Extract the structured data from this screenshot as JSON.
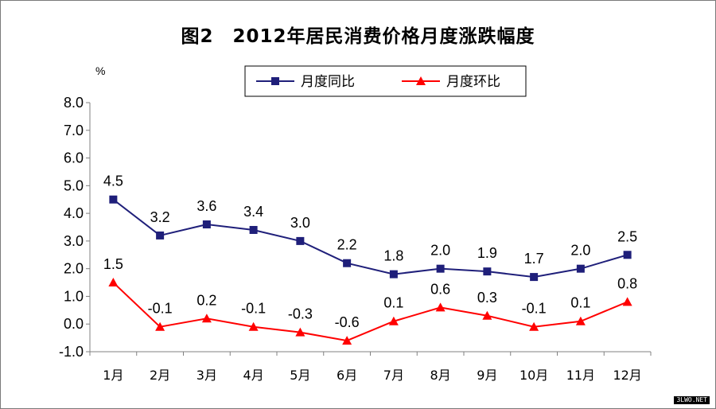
{
  "chart_data": {
    "type": "line",
    "title": "图2　2012年居民消费价格月度涨跌幅度",
    "unit_label": "%",
    "categories": [
      "1月",
      "2月",
      "3月",
      "4月",
      "5月",
      "6月",
      "7月",
      "8月",
      "9月",
      "10月",
      "11月",
      "12月"
    ],
    "ylim": [
      -1.0,
      8.0
    ],
    "y_ticks": [
      "8.0",
      "7.0",
      "6.0",
      "5.0",
      "4.0",
      "3.0",
      "2.0",
      "1.0",
      "0.0",
      "-1.0"
    ],
    "grid": false,
    "legend_position": "top",
    "series": [
      {
        "name": "月度同比",
        "values": [
          4.5,
          3.2,
          3.6,
          3.4,
          3.0,
          2.2,
          1.8,
          2.0,
          1.9,
          1.7,
          2.0,
          2.5
        ],
        "labels": [
          "4.5",
          "3.2",
          "3.6",
          "3.4",
          "3.0",
          "2.2",
          "1.8",
          "2.0",
          "1.9",
          "1.7",
          "2.0",
          "2.5"
        ],
        "color": "#1f1f7a",
        "marker": "square"
      },
      {
        "name": "月度环比",
        "values": [
          1.5,
          -0.1,
          0.2,
          -0.1,
          -0.3,
          -0.6,
          0.1,
          0.6,
          0.3,
          -0.1,
          0.1,
          0.8
        ],
        "labels": [
          "1.5",
          "-0.1",
          "0.2",
          "-0.1",
          "-0.3",
          "-0.6",
          "0.1",
          "0.6",
          "0.3",
          "-0.1",
          "0.1",
          "0.8"
        ],
        "color": "#ff0000",
        "marker": "triangle"
      }
    ]
  },
  "watermark": "3LWO.NET"
}
